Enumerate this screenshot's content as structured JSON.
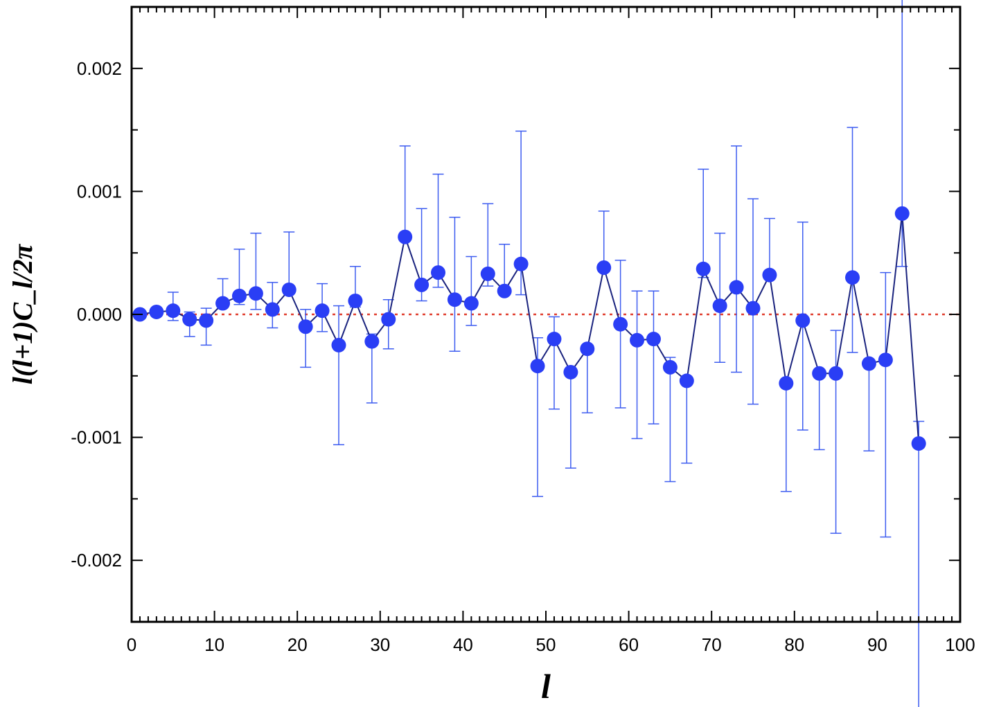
{
  "chart_data": {
    "type": "scatter",
    "xlabel": "l",
    "ylabel": "l(l+1)C_l/2π",
    "xlim": [
      0,
      100
    ],
    "ylim": [
      -0.0025,
      0.0025
    ],
    "x_ticks": [
      0,
      10,
      20,
      30,
      40,
      50,
      60,
      70,
      80,
      90,
      100
    ],
    "x_tick_labels": [
      "0",
      "10",
      "20",
      "30",
      "40",
      "50",
      "60",
      "70",
      "80",
      "90",
      "100"
    ],
    "y_ticks": [
      -0.002,
      -0.001,
      0.0,
      0.001,
      0.002
    ],
    "y_tick_labels": [
      "-0.002",
      "-0.001",
      "0.000",
      "0.001",
      "0.002"
    ],
    "reference_line": {
      "y": 0,
      "style": "dotted",
      "color": "#e03a2a"
    },
    "grid": false,
    "series": [
      {
        "marker_color": "#2a3ef5",
        "line_color": "#1a237e",
        "errorbar_color": "#3d5cf0",
        "x": [
          1,
          3,
          5,
          7,
          9,
          11,
          13,
          15,
          17,
          19,
          21,
          23,
          25,
          27,
          29,
          31,
          33,
          35,
          37,
          39,
          41,
          43,
          45,
          47,
          49,
          51,
          53,
          55,
          57,
          59,
          61,
          63,
          65,
          67,
          69,
          71,
          73,
          75,
          77,
          79,
          81,
          83,
          85,
          87,
          89,
          91,
          93,
          95
        ],
        "y": [
          0.0,
          2e-05,
          3e-05,
          -4e-05,
          -5e-05,
          9e-05,
          0.00015,
          0.00017,
          4e-05,
          0.0002,
          -0.0001,
          3e-05,
          -0.00025,
          0.00011,
          -0.00022,
          -4e-05,
          0.00063,
          0.00024,
          0.00034,
          0.00012,
          9e-05,
          0.00033,
          0.00019,
          0.00041,
          -0.00042,
          -0.0002,
          -0.00047,
          -0.00028,
          0.00038,
          -8e-05,
          -0.00021,
          -0.0002,
          -0.00043,
          -0.00054,
          0.00037,
          7e-05,
          0.00022,
          5e-05,
          0.00032,
          -0.00056,
          -5e-05,
          -0.00048,
          -0.00048,
          0.0003,
          -0.0004,
          -0.00037,
          0.00082,
          -0.00105
        ],
        "y_err_low": [
          0.0,
          0.0,
          8e-05,
          0.00014,
          0.0002,
          0.0,
          7e-05,
          0.00013,
          0.00015,
          0.0,
          0.00033,
          0.00017,
          0.00081,
          5e-05,
          0.0005,
          0.00024,
          0.0,
          0.00013,
          0.00012,
          0.00042,
          0.00018,
          0.0001,
          0.0,
          0.00025,
          0.00106,
          0.00057,
          0.00078,
          0.00052,
          0.0,
          0.00068,
          0.0008,
          0.00069,
          0.00093,
          0.00067,
          7e-05,
          0.00046,
          0.00069,
          0.00078,
          0.0,
          0.00088,
          0.00089,
          0.00062,
          0.0013,
          0.00061,
          0.00071,
          0.00144,
          0.00043,
          0.00227
        ],
        "y_err_high": [
          0.0,
          0.0,
          0.00015,
          6e-05,
          0.0001,
          0.0002,
          0.00038,
          0.00049,
          0.00022,
          0.00047,
          0.00014,
          0.00022,
          0.00032,
          0.00028,
          6e-05,
          0.00016,
          0.00074,
          0.00062,
          0.0008,
          0.00067,
          0.00038,
          0.00057,
          0.00038,
          0.00108,
          0.00023,
          0.00018,
          0.0,
          0.0,
          0.00046,
          0.00052,
          0.0004,
          0.00039,
          8e-05,
          0.0,
          0.00081,
          0.00059,
          0.00115,
          0.00089,
          0.00046,
          0.0,
          0.0008,
          0.0,
          0.00035,
          0.00122,
          0.0,
          0.00071,
          0.00209,
          0.00018
        ]
      }
    ]
  }
}
